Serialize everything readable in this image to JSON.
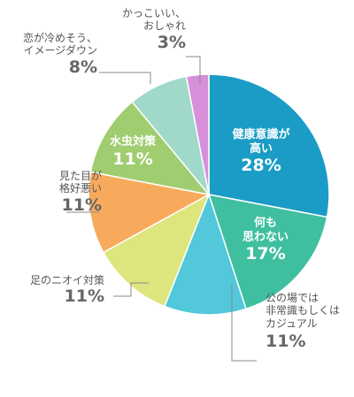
{
  "chart_data": {
    "type": "pie",
    "categories": [
      "健康意識が\n高い",
      "何も\n思わない",
      "公の場では\n非常識もしくは\nカジュアル",
      "足のニオイ対策",
      "見た目が\n格好悪い",
      "水虫対策",
      "恋が冷めそう、\nイメージダウン",
      "かっこいい、\nおしゃれ"
    ],
    "values": [
      28,
      17,
      11,
      11,
      11,
      11,
      8,
      3
    ],
    "value_labels": [
      "28%",
      "17%",
      "11%",
      "11%",
      "11%",
      "11%",
      "8%",
      "3%"
    ],
    "colors": [
      "#1a9cc6",
      "#3fbf9f",
      "#52c8da",
      "#dde57d",
      "#f8aa5c",
      "#9fcd6f",
      "#a0d9c9",
      "#d690da"
    ]
  }
}
